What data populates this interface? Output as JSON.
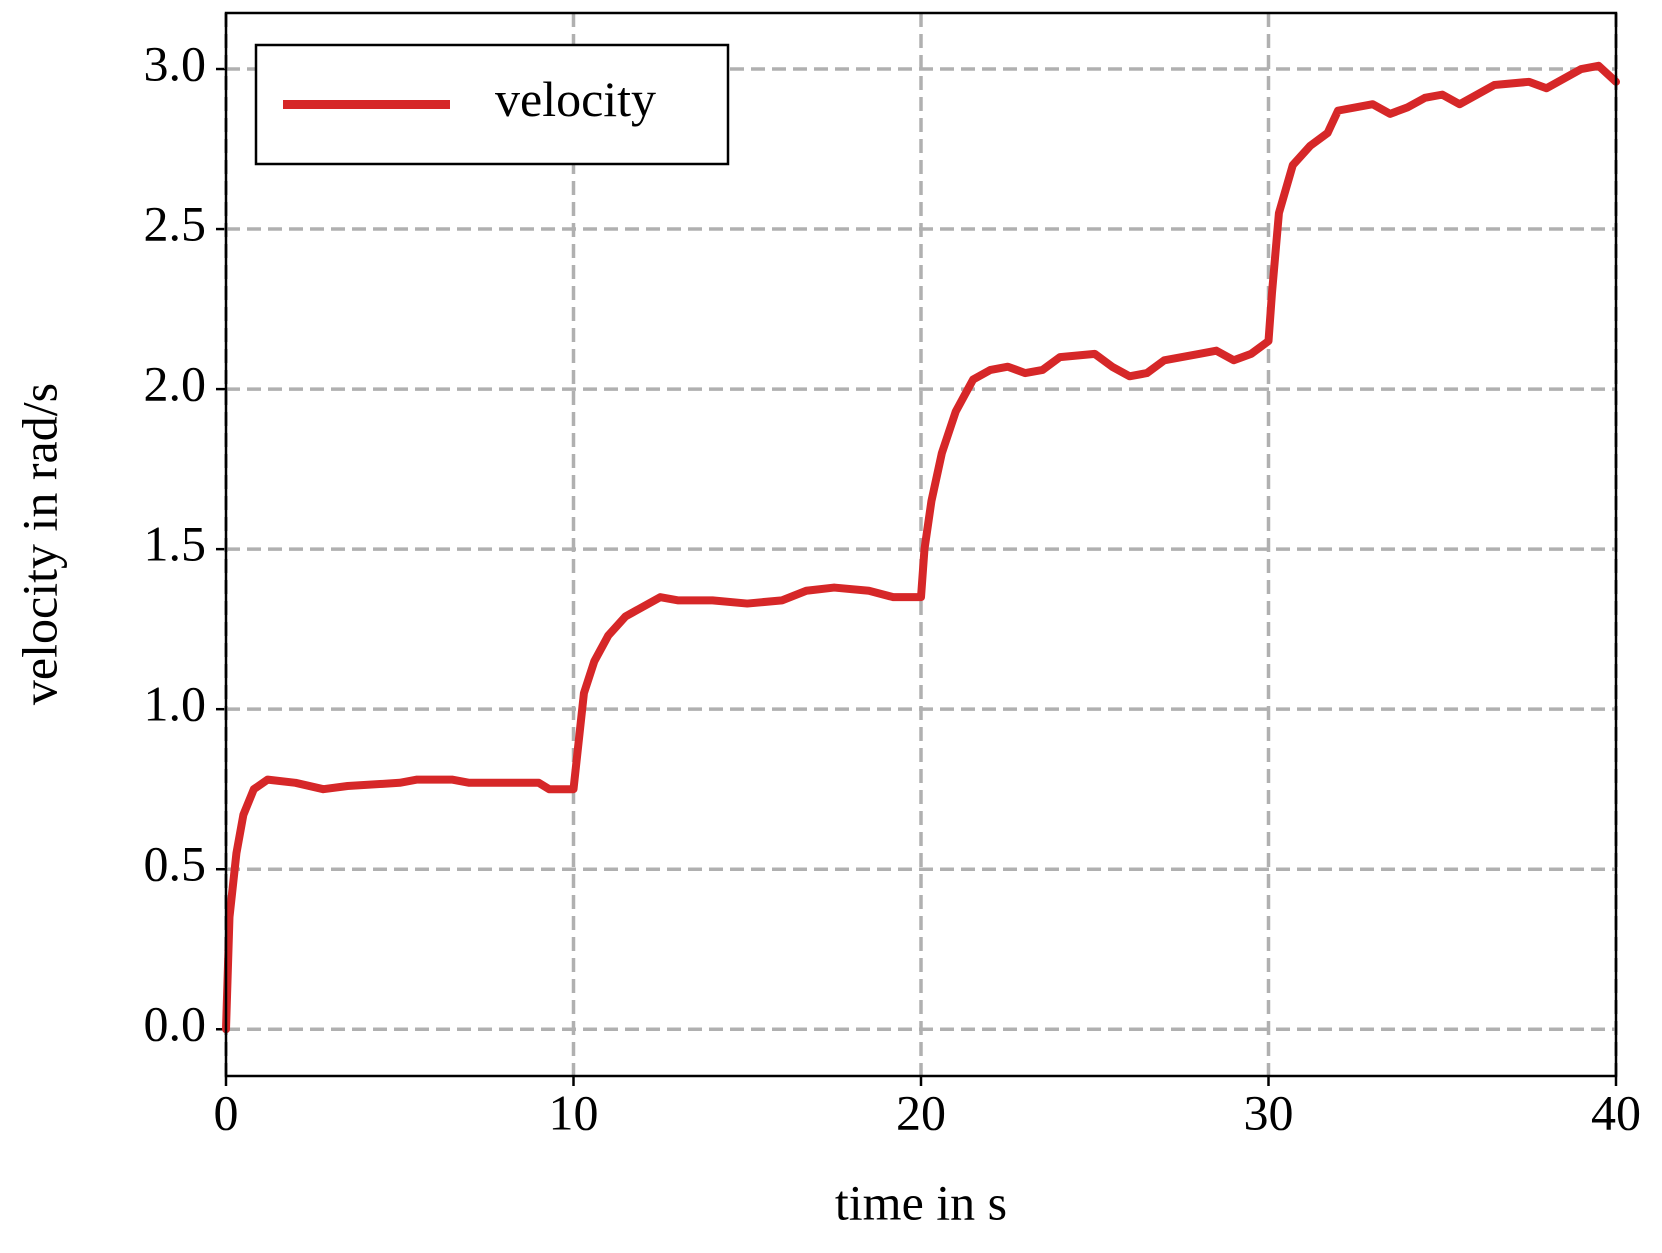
{
  "chart_data": {
    "type": "line",
    "x_label": "time in s",
    "y_label": "velocity in rad/s",
    "x": [
      0,
      0.1,
      0.3,
      0.5,
      0.8,
      1.2,
      2,
      2.8,
      3.5,
      5,
      5.5,
      6.5,
      7,
      9,
      9.3,
      10,
      10.1,
      10.3,
      10.6,
      11,
      11.5,
      12,
      12.5,
      13,
      14,
      15,
      16,
      16.7,
      17.5,
      18.5,
      19.2,
      20,
      20.1,
      20.3,
      20.6,
      21,
      21.5,
      22,
      22.5,
      23,
      23.5,
      24,
      25,
      25.5,
      26,
      26.5,
      27,
      28,
      28.5,
      29,
      29.5,
      30,
      30.1,
      30.3,
      30.7,
      31.2,
      31.7,
      32,
      33,
      33.5,
      34,
      34.5,
      35,
      35.5,
      36,
      36.5,
      37.5,
      38,
      38.5,
      39,
      39.5,
      40
    ],
    "series": [
      {
        "name": "velocity",
        "color": "#d62728",
        "values": [
          0,
          0.35,
          0.55,
          0.67,
          0.75,
          0.78,
          0.77,
          0.75,
          0.76,
          0.77,
          0.78,
          0.78,
          0.77,
          0.77,
          0.75,
          0.75,
          0.85,
          1.05,
          1.15,
          1.23,
          1.29,
          1.32,
          1.35,
          1.34,
          1.34,
          1.33,
          1.34,
          1.37,
          1.38,
          1.37,
          1.35,
          1.35,
          1.5,
          1.65,
          1.8,
          1.93,
          2.03,
          2.06,
          2.07,
          2.05,
          2.06,
          2.1,
          2.11,
          2.07,
          2.04,
          2.05,
          2.09,
          2.11,
          2.12,
          2.09,
          2.11,
          2.15,
          2.3,
          2.55,
          2.7,
          2.76,
          2.8,
          2.87,
          2.89,
          2.86,
          2.88,
          2.91,
          2.92,
          2.89,
          2.92,
          2.95,
          2.96,
          2.94,
          2.97,
          3.0,
          3.01,
          2.96
        ]
      }
    ],
    "xlim": [
      0,
      40
    ],
    "xticks": [
      0,
      10,
      20,
      30,
      40
    ],
    "ylim": [
      -0.146,
      3.175
    ],
    "yticks": [
      {
        "value": 0,
        "label": "0.0"
      },
      0.5,
      {
        "value": 1,
        "label": "1.0"
      },
      1.5,
      {
        "value": 2,
        "label": "2.0"
      },
      2.5,
      {
        "value": 3,
        "label": "3.0"
      }
    ],
    "grid": true,
    "legend": "upper left"
  }
}
